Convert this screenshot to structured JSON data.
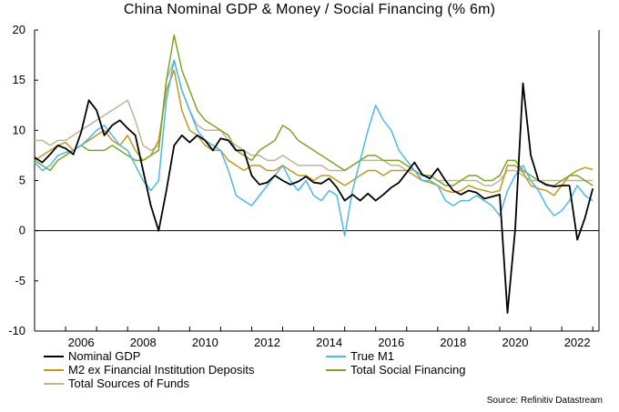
{
  "chart_data": {
    "type": "line",
    "title": "China Nominal GDP & Money / Social Financing (% 6m)",
    "xlabel": "",
    "ylabel": "",
    "xlim": [
      2005.0,
      2023.2
    ],
    "ylim": [
      -10,
      20
    ],
    "x_ticks": [
      2006,
      2008,
      2010,
      2012,
      2014,
      2016,
      2018,
      2020,
      2022
    ],
    "y_ticks": [
      20,
      15,
      10,
      5,
      0,
      -5,
      -10
    ],
    "grid": false,
    "legend_position": "bottom",
    "source": "Source: Refinitiv Datastream",
    "series": [
      {
        "name": "Nominal GDP",
        "color": "#000000",
        "x": [
          2005.0,
          2005.25,
          2005.5,
          2005.75,
          2006.0,
          2006.25,
          2006.5,
          2006.75,
          2007.0,
          2007.25,
          2007.5,
          2007.75,
          2008.0,
          2008.25,
          2008.5,
          2008.75,
          2009.0,
          2009.25,
          2009.5,
          2009.75,
          2010.0,
          2010.25,
          2010.5,
          2010.75,
          2011.0,
          2011.25,
          2011.5,
          2011.75,
          2012.0,
          2012.25,
          2012.5,
          2012.75,
          2013.0,
          2013.25,
          2013.5,
          2013.75,
          2014.0,
          2014.25,
          2014.5,
          2014.75,
          2015.0,
          2015.25,
          2015.5,
          2015.75,
          2016.0,
          2016.25,
          2016.5,
          2016.75,
          2017.0,
          2017.25,
          2017.5,
          2017.75,
          2018.0,
          2018.25,
          2018.5,
          2018.75,
          2019.0,
          2019.25,
          2019.5,
          2019.75,
          2020.0,
          2020.25,
          2020.5,
          2020.75,
          2021.0,
          2021.25,
          2021.5,
          2021.75,
          2022.0,
          2022.25,
          2022.5,
          2022.75,
          2023.0
        ],
        "values": [
          7.3,
          6.8,
          7.6,
          8.5,
          8.2,
          7.6,
          9.8,
          13.0,
          12.0,
          9.5,
          10.5,
          11.0,
          10.2,
          9.5,
          6.0,
          2.5,
          0.0,
          4.0,
          8.5,
          9.5,
          8.8,
          9.5,
          9.0,
          8.0,
          9.2,
          9.0,
          8.0,
          8.0,
          5.5,
          4.6,
          4.8,
          5.5,
          5.0,
          4.6,
          4.9,
          5.4,
          4.8,
          4.7,
          5.2,
          4.3,
          3.0,
          3.6,
          3.0,
          3.7,
          3.0,
          3.6,
          4.3,
          4.8,
          5.8,
          6.8,
          5.6,
          5.2,
          6.2,
          5.0,
          4.0,
          3.6,
          4.0,
          3.8,
          3.2,
          3.4,
          3.6,
          -8.2,
          0.2,
          14.7,
          7.5,
          5.0,
          4.6,
          4.4,
          4.5,
          4.5,
          -0.9,
          1.3,
          4.2
        ]
      },
      {
        "name": "True M1",
        "color": "#4db8e8",
        "x": [
          2005.0,
          2005.25,
          2005.5,
          2005.75,
          2006.0,
          2006.25,
          2006.5,
          2006.75,
          2007.0,
          2007.25,
          2007.5,
          2007.75,
          2008.0,
          2008.25,
          2008.5,
          2008.75,
          2009.0,
          2009.25,
          2009.5,
          2009.75,
          2010.0,
          2010.25,
          2010.5,
          2010.75,
          2011.0,
          2011.25,
          2011.5,
          2011.75,
          2012.0,
          2012.25,
          2012.5,
          2012.75,
          2013.0,
          2013.25,
          2013.5,
          2013.75,
          2014.0,
          2014.25,
          2014.5,
          2014.75,
          2015.0,
          2015.25,
          2015.5,
          2015.75,
          2016.0,
          2016.25,
          2016.5,
          2016.75,
          2017.0,
          2017.25,
          2017.5,
          2017.75,
          2018.0,
          2018.25,
          2018.5,
          2018.75,
          2019.0,
          2019.25,
          2019.5,
          2019.75,
          2020.0,
          2020.25,
          2020.5,
          2020.75,
          2021.0,
          2021.25,
          2021.5,
          2021.75,
          2022.0,
          2022.25,
          2022.5,
          2022.75,
          2023.0
        ],
        "values": [
          6.8,
          6.0,
          6.5,
          7.5,
          7.8,
          8.0,
          8.5,
          9.2,
          10.0,
          10.5,
          9.5,
          8.5,
          8.0,
          6.5,
          5.0,
          4.0,
          5.0,
          13.0,
          17.0,
          14.0,
          12.0,
          10.0,
          9.0,
          8.5,
          8.0,
          6.0,
          3.5,
          3.0,
          2.5,
          3.5,
          4.5,
          5.5,
          6.5,
          5.0,
          4.0,
          5.0,
          3.5,
          3.0,
          4.0,
          3.5,
          -0.5,
          4.0,
          7.0,
          10.0,
          12.5,
          11.0,
          10.0,
          8.0,
          7.0,
          6.0,
          5.0,
          5.0,
          4.5,
          3.0,
          2.5,
          3.0,
          3.0,
          3.5,
          3.0,
          2.5,
          1.5,
          4.0,
          5.5,
          6.5,
          5.0,
          4.0,
          2.5,
          1.5,
          2.0,
          3.0,
          4.5,
          3.5,
          3.0
        ]
      },
      {
        "name": "M2 ex Financial Institution Deposits",
        "color": "#c8951e",
        "x": [
          2005.0,
          2005.25,
          2005.5,
          2005.75,
          2006.0,
          2006.25,
          2006.5,
          2006.75,
          2007.0,
          2007.25,
          2007.5,
          2007.75,
          2008.0,
          2008.25,
          2008.5,
          2008.75,
          2009.0,
          2009.25,
          2009.5,
          2009.75,
          2010.0,
          2010.25,
          2010.5,
          2010.75,
          2011.0,
          2011.25,
          2011.5,
          2011.75,
          2012.0,
          2012.25,
          2012.5,
          2012.75,
          2013.0,
          2013.25,
          2013.5,
          2013.75,
          2014.0,
          2014.25,
          2014.5,
          2014.75,
          2015.0,
          2015.25,
          2015.5,
          2015.75,
          2016.0,
          2016.25,
          2016.5,
          2016.75,
          2017.0,
          2017.25,
          2017.5,
          2017.75,
          2018.0,
          2018.25,
          2018.5,
          2018.75,
          2019.0,
          2019.25,
          2019.5,
          2019.75,
          2020.0,
          2020.25,
          2020.5,
          2020.75,
          2021.0,
          2021.25,
          2021.5,
          2021.75,
          2022.0,
          2022.25,
          2022.5,
          2022.75,
          2023.0
        ],
        "values": [
          7.0,
          7.5,
          8.0,
          8.5,
          8.8,
          8.0,
          8.5,
          9.0,
          9.5,
          10.0,
          9.0,
          8.5,
          9.5,
          8.0,
          7.0,
          7.5,
          9.0,
          14.0,
          16.0,
          12.0,
          10.0,
          9.5,
          8.5,
          8.0,
          8.0,
          7.0,
          6.5,
          6.0,
          6.5,
          6.5,
          6.0,
          6.0,
          6.5,
          6.0,
          5.5,
          5.5,
          5.0,
          5.5,
          5.5,
          5.0,
          4.5,
          5.0,
          5.5,
          6.0,
          6.0,
          5.5,
          6.0,
          6.0,
          6.0,
          5.5,
          5.0,
          4.8,
          4.5,
          4.0,
          3.8,
          4.0,
          4.5,
          4.2,
          4.0,
          3.8,
          4.0,
          6.5,
          6.5,
          5.8,
          4.5,
          4.2,
          4.0,
          3.5,
          4.5,
          5.5,
          6.0,
          6.3,
          6.1
        ]
      },
      {
        "name": "Total Social Financing",
        "color": "#7aa628",
        "x": [
          2005.0,
          2005.25,
          2005.5,
          2005.75,
          2006.0,
          2006.25,
          2006.5,
          2006.75,
          2007.0,
          2007.25,
          2007.5,
          2007.75,
          2008.0,
          2008.25,
          2008.5,
          2008.75,
          2009.0,
          2009.25,
          2009.5,
          2009.75,
          2010.0,
          2010.25,
          2010.5,
          2010.75,
          2011.0,
          2011.25,
          2011.5,
          2011.75,
          2012.0,
          2012.25,
          2012.5,
          2012.75,
          2013.0,
          2013.25,
          2013.5,
          2013.75,
          2014.0,
          2014.25,
          2014.5,
          2014.75,
          2015.0,
          2015.25,
          2015.5,
          2015.75,
          2016.0,
          2016.25,
          2016.5,
          2016.75,
          2017.0,
          2017.25,
          2017.5,
          2017.75,
          2018.0,
          2018.25,
          2018.5,
          2018.75,
          2019.0,
          2019.25,
          2019.5,
          2019.75,
          2020.0,
          2020.25,
          2020.5,
          2020.75,
          2021.0,
          2021.25,
          2021.5,
          2021.75,
          2022.0,
          2022.25,
          2022.5,
          2022.75,
          2023.0
        ],
        "values": [
          7.0,
          6.5,
          6.0,
          7.0,
          7.5,
          8.0,
          8.5,
          8.0,
          8.0,
          8.0,
          8.5,
          8.0,
          7.5,
          7.0,
          7.0,
          7.5,
          8.0,
          15.0,
          19.5,
          16.0,
          14.0,
          12.0,
          11.0,
          10.5,
          10.0,
          9.5,
          8.0,
          7.5,
          7.0,
          8.0,
          8.5,
          9.0,
          10.5,
          10.0,
          9.0,
          8.5,
          8.0,
          7.5,
          7.0,
          6.5,
          6.0,
          6.5,
          7.0,
          7.5,
          7.5,
          7.0,
          7.0,
          7.0,
          6.5,
          6.0,
          5.5,
          5.5,
          5.0,
          4.5,
          4.5,
          5.0,
          5.5,
          5.5,
          5.0,
          5.0,
          5.5,
          7.0,
          7.0,
          6.0,
          5.5,
          5.0,
          4.5,
          4.5,
          5.0,
          5.5,
          5.5,
          5.0,
          4.5
        ]
      },
      {
        "name": "Total Sources of Funds",
        "color": "#bfb39c",
        "x": [
          2005.0,
          2005.25,
          2005.5,
          2005.75,
          2006.0,
          2006.25,
          2006.5,
          2006.75,
          2007.0,
          2007.25,
          2007.5,
          2007.75,
          2008.0,
          2008.25,
          2008.5,
          2008.75,
          2009.0,
          2009.25,
          2009.5,
          2009.75,
          2010.0,
          2010.25,
          2010.5,
          2010.75,
          2011.0,
          2011.25,
          2011.5,
          2011.75,
          2012.0,
          2012.25,
          2012.5,
          2012.75,
          2013.0,
          2013.25,
          2013.5,
          2013.75,
          2014.0,
          2014.25,
          2014.5,
          2014.75,
          2015.0,
          2015.25,
          2015.5,
          2015.75,
          2016.0,
          2016.25,
          2016.5,
          2016.75,
          2017.0,
          2017.25,
          2017.5,
          2017.75,
          2018.0,
          2018.25,
          2018.5,
          2018.75,
          2019.0,
          2019.25,
          2019.5,
          2019.75,
          2020.0,
          2020.25,
          2020.5,
          2020.75,
          2021.0,
          2021.25,
          2021.5,
          2021.75,
          2022.0,
          2022.25,
          2022.5,
          2022.75,
          2023.0
        ],
        "values": [
          9.0,
          9.0,
          8.5,
          9.0,
          9.0,
          9.5,
          10.0,
          10.5,
          11.0,
          11.5,
          12.0,
          12.5,
          13.0,
          11.0,
          8.5,
          8.0,
          8.5,
          15.0,
          17.0,
          14.0,
          12.0,
          10.5,
          10.0,
          10.0,
          10.0,
          9.0,
          8.5,
          8.0,
          7.5,
          7.5,
          7.0,
          7.0,
          7.5,
          7.0,
          6.5,
          6.5,
          6.5,
          6.5,
          6.0,
          6.0,
          6.0,
          6.5,
          7.0,
          7.0,
          7.0,
          7.0,
          6.5,
          6.5,
          6.0,
          6.0,
          5.5,
          5.5,
          5.0,
          5.0,
          5.0,
          5.0,
          5.0,
          5.0,
          4.5,
          4.5,
          5.0,
          6.0,
          6.0,
          5.5,
          5.0,
          5.0,
          5.0,
          5.0,
          5.0,
          5.0,
          5.0,
          5.0,
          5.0
        ]
      }
    ]
  }
}
